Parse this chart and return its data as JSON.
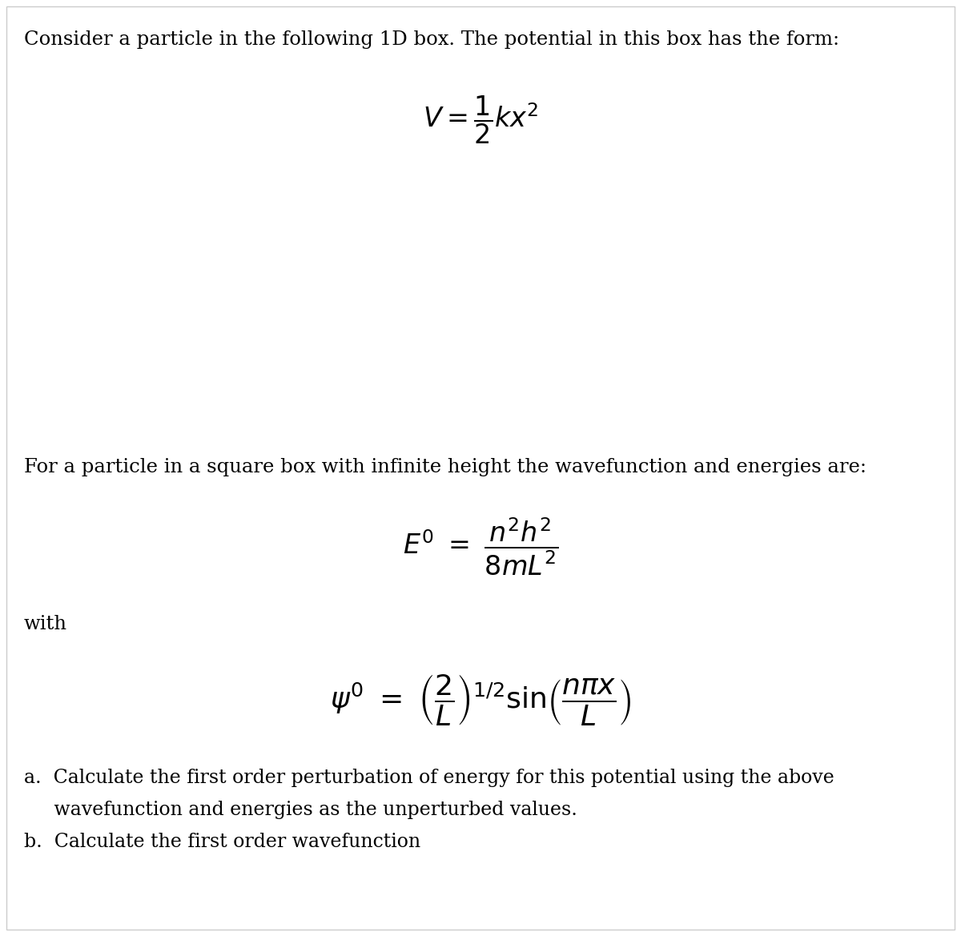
{
  "bg_color": "#ffffff",
  "text_color": "#000000",
  "title_text": "Consider a particle in the following 1D box. The potential in this box has the form:",
  "middle_text": "For a particle in a square box with infinite height the wavefunction and energies are:",
  "with_text": "with",
  "item_a1": "a.  Calculate the first order perturbation of energy for this potential using the above",
  "item_a2": "     wavefunction and energies as the unperturbed values.",
  "item_b": "b.  Calculate the first order wavefunction",
  "title_fontsize": 17.5,
  "eq_fontsize": 20,
  "body_fontsize": 17.5,
  "with_fontsize": 17.5,
  "item_fontsize": 17.0,
  "border_color": "#cccccc",
  "border_lw": 1.0
}
